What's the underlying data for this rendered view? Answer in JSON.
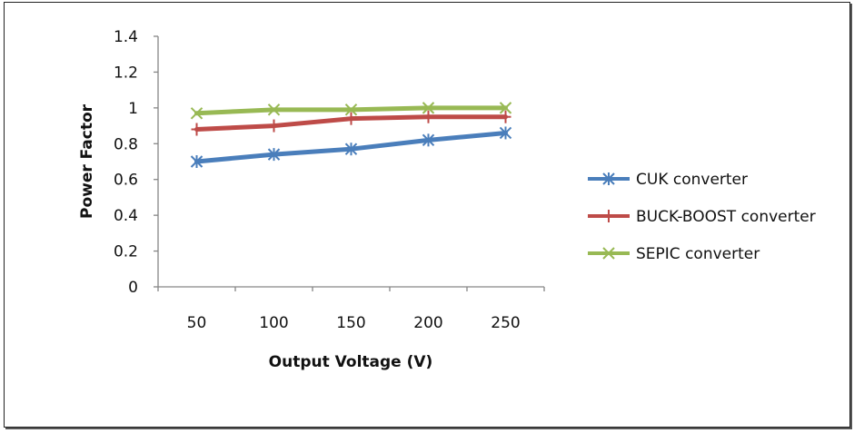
{
  "chart_data": {
    "type": "line",
    "title": "",
    "xlabel": "Output Voltage (V)",
    "ylabel": "Power Factor",
    "categories": [
      "50",
      "100",
      "150",
      "200",
      "250"
    ],
    "ylim": [
      0,
      1.4
    ],
    "yticks": [
      "0",
      "0.2",
      "0.4",
      "0.6",
      "0.8",
      "1",
      "1.2",
      "1.4"
    ],
    "ytick_values": [
      0,
      0.2,
      0.4,
      0.6,
      0.8,
      1.0,
      1.2,
      1.4
    ],
    "grid": false,
    "legend_position": "right",
    "series": [
      {
        "name": "CUK converter",
        "color": "#4a7ebb",
        "marker": "asterisk",
        "values": [
          0.7,
          0.74,
          0.77,
          0.82,
          0.86
        ]
      },
      {
        "name": "BUCK-BOOST converter",
        "color": "#be4b48",
        "marker": "plus",
        "values": [
          0.88,
          0.9,
          0.94,
          0.95,
          0.95
        ]
      },
      {
        "name": "SEPIC converter",
        "color": "#98b954",
        "marker": "x",
        "values": [
          0.97,
          0.99,
          0.99,
          1.0,
          1.0
        ]
      }
    ]
  }
}
